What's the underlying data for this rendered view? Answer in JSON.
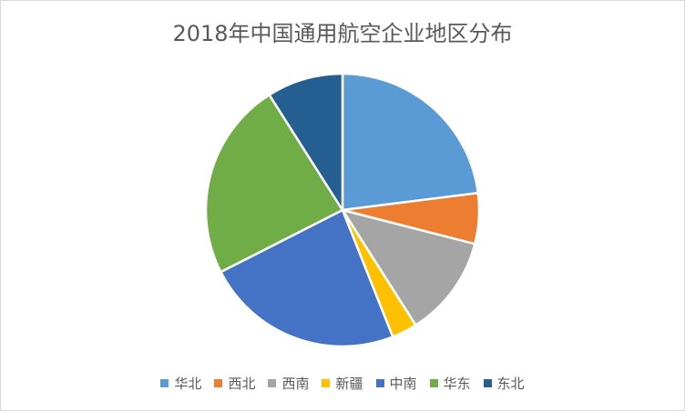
{
  "chart_data": {
    "type": "pie",
    "title": "2018年中国通用航空企业地区分布",
    "categories": [
      "华北",
      "西北",
      "西南",
      "新疆",
      "中南",
      "华东",
      "东北"
    ],
    "values": [
      23.0,
      6.0,
      12.0,
      3.0,
      23.5,
      23.5,
      9.0
    ],
    "colors": [
      "#5b9bd5",
      "#ed7d31",
      "#a5a5a5",
      "#ffc000",
      "#4472c4",
      "#70ad47",
      "#255e91"
    ],
    "start_angle_deg": 0,
    "direction": "clockwise",
    "legend": "bottom"
  }
}
